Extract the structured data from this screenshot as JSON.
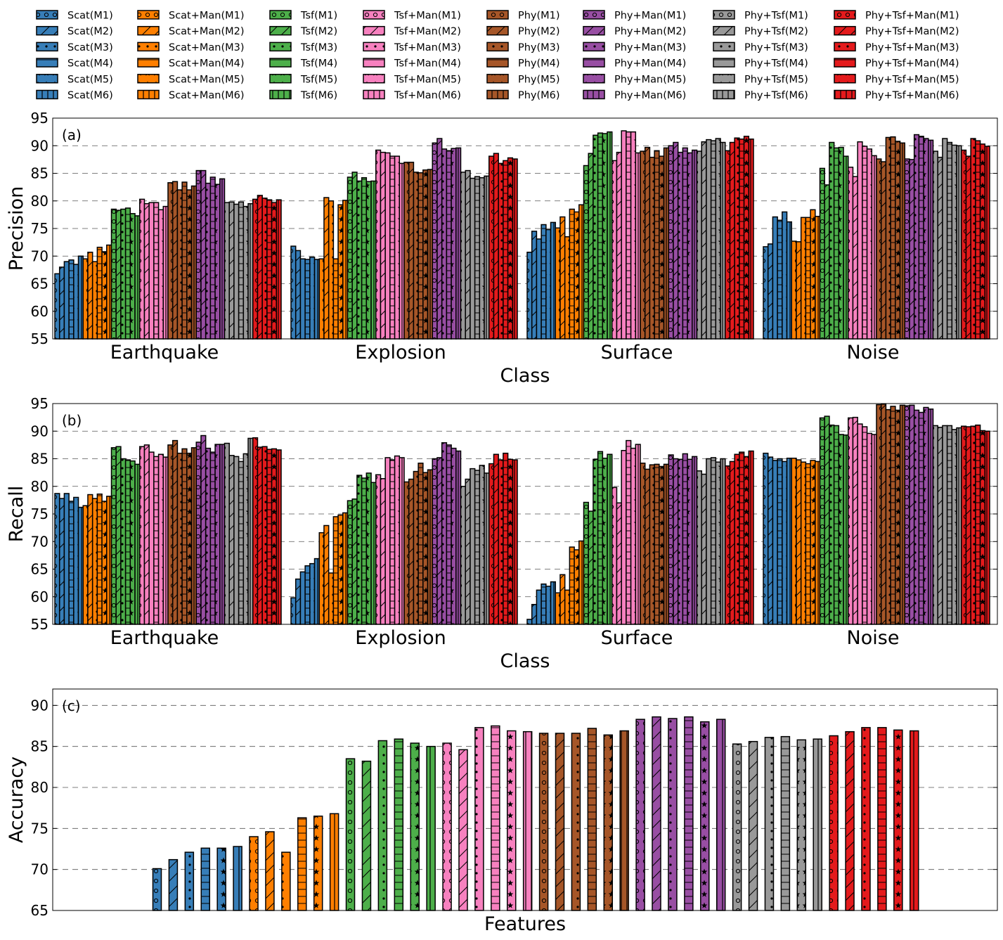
{
  "chart_data": {
    "type": "bar",
    "feature_groups": [
      "Scat",
      "Scat+Man",
      "Tsf",
      "Tsf+Man",
      "Phy",
      "Phy+Man",
      "Phy+Tsf",
      "Phy+Tsf+Man"
    ],
    "models": [
      "M1",
      "M2",
      "M3",
      "M4",
      "M5",
      "M6"
    ],
    "group_colors": [
      "#377eb8",
      "#ff7f00",
      "#4daf4a",
      "#f781bf",
      "#a65628",
      "#984ea3",
      "#999999",
      "#e41a1c"
    ],
    "model_patterns": {
      "M1": "circles",
      "M2": "diagonal",
      "M3": "dots",
      "M4": "horizontal",
      "M5": "stars",
      "M6": "vertical"
    },
    "legend": {
      "location": "top",
      "entries": [
        "Scat(M1)",
        "Scat(M2)",
        "Scat(M3)",
        "Scat(M4)",
        "Scat(M5)",
        "Scat(M6)",
        "Scat+Man(M1)",
        "Scat+Man(M2)",
        "Scat+Man(M3)",
        "Scat+Man(M4)",
        "Scat+Man(M5)",
        "Scat+Man(M6)",
        "Tsf(M1)",
        "Tsf(M2)",
        "Tsf(M3)",
        "Tsf(M4)",
        "Tsf(M5)",
        "Tsf(M6)",
        "Tsf+Man(M1)",
        "Tsf+Man(M2)",
        "Tsf+Man(M3)",
        "Tsf+Man(M4)",
        "Tsf+Man(M5)",
        "Tsf+Man(M6)",
        "Phy(M1)",
        "Phy(M2)",
        "Phy(M3)",
        "Phy(M4)",
        "Phy(M5)",
        "Phy(M6)",
        "Phy+Man(M1)",
        "Phy+Man(M2)",
        "Phy+Man(M3)",
        "Phy+Man(M4)",
        "Phy+Man(M5)",
        "Phy+Man(M6)",
        "Phy+Tsf(M1)",
        "Phy+Tsf(M2)",
        "Phy+Tsf(M3)",
        "Phy+Tsf(M4)",
        "Phy+Tsf(M5)",
        "Phy+Tsf(M6)",
        "Phy+Tsf+Man(M1)",
        "Phy+Tsf+Man(M2)",
        "Phy+Tsf+Man(M3)",
        "Phy+Tsf+Man(M4)",
        "Phy+Tsf+Man(M5)",
        "Phy+Tsf+Man(M6)"
      ]
    },
    "panels": [
      {
        "id": "precision",
        "panel_label": "(a)",
        "ylabel": "Precision",
        "xlabel": "Class",
        "ylim": [
          55,
          95
        ],
        "yticks": [
          55,
          60,
          65,
          70,
          75,
          80,
          85,
          90,
          95
        ],
        "categories": [
          "Earthquake",
          "Explosion",
          "Surface",
          "Noise"
        ],
        "values": [
          [
            66.8,
            68.0,
            69.0,
            69.3,
            68.5,
            70.0,
            69.5,
            70.7,
            69.0,
            71.6,
            70.8,
            72.0,
            78.5,
            78.3,
            78.5,
            78.7,
            77.7,
            77.3,
            80.3,
            79.5,
            79.7,
            79.7,
            78.4,
            79.0,
            83.3,
            83.5,
            82.0,
            83.4,
            82.0,
            82.7,
            85.5,
            85.5,
            83.2,
            84.3,
            83.0,
            84.0,
            79.7,
            79.8,
            79.4,
            79.8,
            79.0,
            79.5,
            80.3,
            81.0,
            80.5,
            80.2,
            79.7,
            80.2
          ],
          [
            71.8,
            71.0,
            69.5,
            69.4,
            69.8,
            69.4,
            69.5,
            80.6,
            80.0,
            69.5,
            79.3,
            80.1,
            84.3,
            85.2,
            83.6,
            84.2,
            83.5,
            83.6,
            89.2,
            88.8,
            88.7,
            88.1,
            88.1,
            86.8,
            87.0,
            87.0,
            85.2,
            85.1,
            85.6,
            85.7,
            90.5,
            91.3,
            89.4,
            89.1,
            89.5,
            89.6,
            85.2,
            85.5,
            84.1,
            84.4,
            84.2,
            84.5,
            88.1,
            88.6,
            86.8,
            87.3,
            87.8,
            87.6
          ],
          [
            70.7,
            74.5,
            73.1,
            75.7,
            74.8,
            76.1,
            75.1,
            77.1,
            73.5,
            78.5,
            78.0,
            79.3,
            86.4,
            88.6,
            91.9,
            92.3,
            92.2,
            92.5,
            87.3,
            88.8,
            92.7,
            92.5,
            92.5,
            88.7,
            89.0,
            89.7,
            87.9,
            89.1,
            88.1,
            89.6,
            90.0,
            90.6,
            88.8,
            89.6,
            88.7,
            89.2,
            89.0,
            90.7,
            91.1,
            90.9,
            91.3,
            90.6,
            89.1,
            90.6,
            91.4,
            91.2,
            91.7,
            91.2
          ],
          [
            71.7,
            72.2,
            77.1,
            76.5,
            78.0,
            76.2,
            72.7,
            72.6,
            77.0,
            77.0,
            78.4,
            77.2,
            85.9,
            82.9,
            90.6,
            89.6,
            89.7,
            88.1,
            86.1,
            84.4,
            90.7,
            89.9,
            89.4,
            88.2,
            87.6,
            87.1,
            91.5,
            91.6,
            90.8,
            90.5,
            87.6,
            87.5,
            92.0,
            91.7,
            91.3,
            91.0,
            89.0,
            87.9,
            91.3,
            90.6,
            90.1,
            90.0,
            89.2,
            88.1,
            91.3,
            90.9,
            90.3,
            89.9
          ]
        ]
      },
      {
        "id": "recall",
        "panel_label": "(b)",
        "ylabel": "Recall",
        "xlabel": "Class",
        "ylim": [
          55,
          95
        ],
        "yticks": [
          55,
          60,
          65,
          70,
          75,
          80,
          85,
          90,
          95
        ],
        "categories": [
          "Earthquake",
          "Explosion",
          "Surface",
          "Noise"
        ],
        "values": [
          [
            78.7,
            77.8,
            78.7,
            77.3,
            78.0,
            76.2,
            76.5,
            78.5,
            77.8,
            78.6,
            77.3,
            78.2,
            87.0,
            87.2,
            85.0,
            84.8,
            84.6,
            84.0,
            87.2,
            87.5,
            86.2,
            85.4,
            85.8,
            85.3,
            87.5,
            88.3,
            86.0,
            86.8,
            86.0,
            87.0,
            88.0,
            89.2,
            86.9,
            86.2,
            87.6,
            87.6,
            87.8,
            85.6,
            85.4,
            84.5,
            85.9,
            88.7,
            88.8,
            87.1,
            87.2,
            86.7,
            86.8,
            86.6
          ],
          [
            59.8,
            63.2,
            64.5,
            65.6,
            66.0,
            66.9,
            71.6,
            72.9,
            64.3,
            74.5,
            74.8,
            75.2,
            77.4,
            77.7,
            82.0,
            81.5,
            82.4,
            80.7,
            82.1,
            81.4,
            85.2,
            84.8,
            85.5,
            85.2,
            80.8,
            81.3,
            82.7,
            84.2,
            82.5,
            83.0,
            85.0,
            85.2,
            87.9,
            87.5,
            86.9,
            86.4,
            80.0,
            81.3,
            83.2,
            82.9,
            83.8,
            82.4,
            84.1,
            85.8,
            84.8,
            86.0,
            84.9,
            84.8
          ],
          [
            55.9,
            58.6,
            61.2,
            62.3,
            61.9,
            62.7,
            60.7,
            64.0,
            61.2,
            69.0,
            68.5,
            70.1,
            77.1,
            75.5,
            84.9,
            86.3,
            85.1,
            85.8,
            79.8,
            77.0,
            86.5,
            88.3,
            86.9,
            87.6,
            84.2,
            83.1,
            83.9,
            84.0,
            83.6,
            84.0,
            85.7,
            85.0,
            84.9,
            85.9,
            84.9,
            85.4,
            82.8,
            82.2,
            85.0,
            85.2,
            84.4,
            85.0,
            83.7,
            84.5,
            85.8,
            86.2,
            85.4,
            86.4
          ],
          [
            86.0,
            85.3,
            84.7,
            85.0,
            84.5,
            85.1,
            85.1,
            84.8,
            84.4,
            84.1,
            84.7,
            84.5,
            92.4,
            92.7,
            91.1,
            91.0,
            89.4,
            89.3,
            92.4,
            92.5,
            91.3,
            90.8,
            89.6,
            89.4,
            94.8,
            94.9,
            93.9,
            94.5,
            93.8,
            94.7,
            94.6,
            94.7,
            93.8,
            93.4,
            94.3,
            94.0,
            91.0,
            90.7,
            91.0,
            91.0,
            90.3,
            90.6,
            90.9,
            90.8,
            90.9,
            91.1,
            90.1,
            90.0
          ]
        ]
      },
      {
        "id": "accuracy",
        "panel_label": "(c)",
        "ylabel": "Accuracy",
        "xlabel": "Features",
        "ylim": [
          65,
          92
        ],
        "yticks": [
          65,
          70,
          75,
          80,
          85,
          90
        ],
        "values": [
          70.1,
          71.2,
          72.1,
          72.6,
          72.6,
          72.8,
          74.0,
          74.6,
          72.1,
          76.3,
          76.5,
          76.8,
          83.5,
          83.2,
          85.7,
          85.9,
          85.4,
          85.0,
          85.4,
          84.6,
          87.3,
          87.5,
          86.9,
          86.8,
          86.6,
          86.6,
          86.6,
          87.2,
          86.4,
          86.9,
          88.3,
          88.6,
          88.4,
          88.6,
          88.0,
          88.3,
          85.3,
          85.6,
          86.1,
          86.2,
          85.8,
          85.9,
          86.3,
          86.8,
          87.3,
          87.3,
          87.0,
          86.9
        ]
      }
    ]
  }
}
